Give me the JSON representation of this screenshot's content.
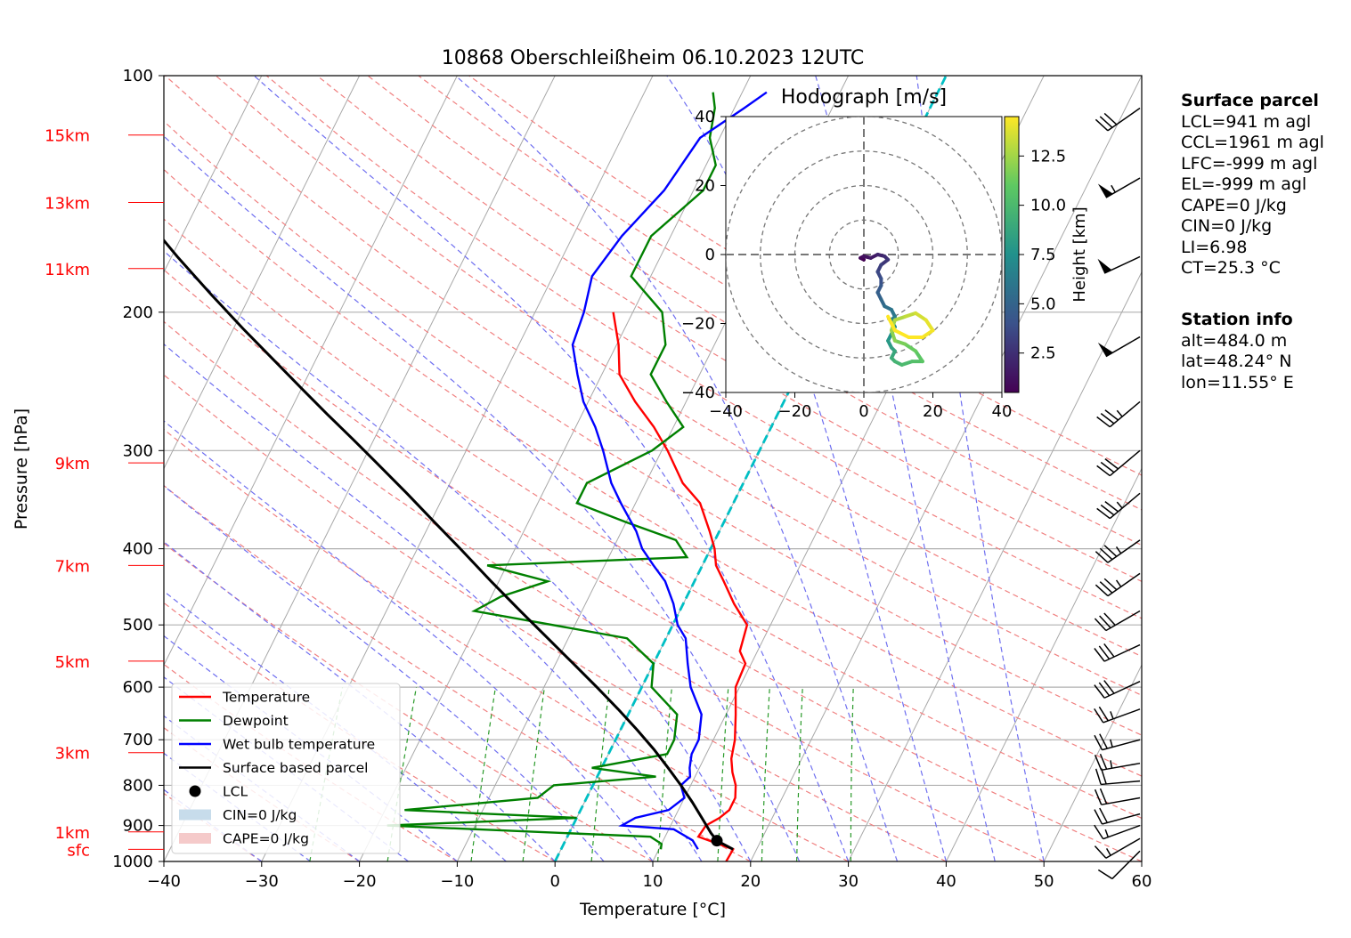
{
  "chart_data": {
    "type": "skew-t",
    "title": "10868 Oberschleißheim 06.10.2023 12UTC",
    "xlabel": "Temperature [°C]",
    "ylabel": "Pressure [hPa]",
    "xlim": [
      -40,
      60
    ],
    "ylim": [
      1000,
      100
    ],
    "x_ticks": [
      "−40",
      "−30",
      "−20",
      "−10",
      "0",
      "10",
      "20",
      "30",
      "40",
      "50",
      "60"
    ],
    "y_ticks": [
      {
        "p": 100,
        "label": "100"
      },
      {
        "p": 200,
        "label": "200"
      },
      {
        "p": 300,
        "label": "300"
      },
      {
        "p": 400,
        "label": "400"
      },
      {
        "p": 500,
        "label": "500"
      },
      {
        "p": 600,
        "label": "600"
      },
      {
        "p": 700,
        "label": "700"
      },
      {
        "p": 800,
        "label": "800"
      },
      {
        "p": 900,
        "label": "900"
      },
      {
        "p": 1000,
        "label": "1000"
      }
    ],
    "height_labels": [
      {
        "p": 119,
        "label": "15km"
      },
      {
        "p": 145,
        "label": "13km"
      },
      {
        "p": 176,
        "label": "11km"
      },
      {
        "p": 311,
        "label": "9km"
      },
      {
        "p": 420,
        "label": "7km"
      },
      {
        "p": 556,
        "label": "5km"
      },
      {
        "p": 727,
        "label": "3km"
      },
      {
        "p": 917,
        "label": "1km"
      },
      {
        "p": 965,
        "label": "sfc"
      }
    ],
    "legend": {
      "position": "lower-left",
      "items": [
        {
          "label": "Temperature",
          "color": "#ff0000",
          "kind": "line"
        },
        {
          "label": "Dewpoint",
          "color": "#008000",
          "kind": "line"
        },
        {
          "label": "Wet bulb temperature",
          "color": "#0000ff",
          "kind": "line"
        },
        {
          "label": "Surface based parcel",
          "color": "#000000",
          "kind": "line"
        },
        {
          "label": "LCL",
          "color": "#000000",
          "kind": "dot"
        },
        {
          "label": "CIN=0 J/kg",
          "color": "#c7dceb",
          "kind": "patch"
        },
        {
          "label": "CAPE=0 J/kg",
          "color": "#f5caca",
          "kind": "patch"
        }
      ]
    },
    "series": [
      {
        "name": "Temperature",
        "color": "#ff0000",
        "points": [
          [
            1000,
            17.5
          ],
          [
            965,
            17.6
          ],
          [
            950,
            15.8
          ],
          [
            930,
            13.4
          ],
          [
            900,
            13.6
          ],
          [
            880,
            14.6
          ],
          [
            860,
            15.2
          ],
          [
            830,
            15.2
          ],
          [
            800,
            14.6
          ],
          [
            770,
            13.6
          ],
          [
            740,
            12.8
          ],
          [
            700,
            12.2
          ],
          [
            650,
            11.0
          ],
          [
            600,
            9.6
          ],
          [
            560,
            9.4
          ],
          [
            540,
            8.2
          ],
          [
            500,
            7.6
          ],
          [
            470,
            5.2
          ],
          [
            440,
            3.0
          ],
          [
            420,
            1.4
          ],
          [
            400,
            0.4
          ],
          [
            380,
            -1.0
          ],
          [
            350,
            -3.4
          ],
          [
            330,
            -6.2
          ],
          [
            300,
            -9.4
          ],
          [
            280,
            -12.0
          ],
          [
            260,
            -15.2
          ],
          [
            240,
            -18.2
          ],
          [
            220,
            -19.8
          ],
          [
            200,
            -22.0
          ]
        ]
      },
      {
        "name": "Dewpoint",
        "color": "#008000",
        "points": [
          [
            965,
            10.2
          ],
          [
            950,
            10.0
          ],
          [
            930,
            8.5
          ],
          [
            900,
            -19.0
          ],
          [
            880,
            0.0
          ],
          [
            860,
            -18.0
          ],
          [
            830,
            -5.0
          ],
          [
            800,
            -4.0
          ],
          [
            780,
            6.0
          ],
          [
            760,
            -1.0
          ],
          [
            730,
            6.0
          ],
          [
            700,
            6.0
          ],
          [
            650,
            5.0
          ],
          [
            600,
            1.0
          ],
          [
            560,
            0.0
          ],
          [
            520,
            -4.0
          ],
          [
            480,
            -21.0
          ],
          [
            460,
            -19.0
          ],
          [
            440,
            -15.0
          ],
          [
            420,
            -22.0
          ],
          [
            410,
            -2.0
          ],
          [
            390,
            -4.0
          ],
          [
            370,
            -10.0
          ],
          [
            350,
            -16.0
          ],
          [
            330,
            -16.0
          ],
          [
            300,
            -11.0
          ],
          [
            280,
            -9.0
          ],
          [
            260,
            -12.0
          ],
          [
            240,
            -15.0
          ],
          [
            220,
            -15.0
          ],
          [
            200,
            -17.0
          ],
          [
            180,
            -22.0
          ],
          [
            160,
            -22.0
          ],
          [
            140,
            -19.0
          ],
          [
            130,
            -19.0
          ],
          [
            120,
            -21.0
          ],
          [
            110,
            -22.0
          ],
          [
            105,
            -23.0
          ]
        ]
      },
      {
        "name": "Wet bulb temperature",
        "color": "#0000ff",
        "points": [
          [
            965,
            14.0
          ],
          [
            940,
            13.0
          ],
          [
            910,
            10.5
          ],
          [
            900,
            5.0
          ],
          [
            880,
            6.0
          ],
          [
            860,
            9.0
          ],
          [
            830,
            10.0
          ],
          [
            800,
            9.0
          ],
          [
            780,
            9.5
          ],
          [
            760,
            9.0
          ],
          [
            730,
            8.5
          ],
          [
            700,
            8.5
          ],
          [
            650,
            7.5
          ],
          [
            600,
            5.0
          ],
          [
            560,
            3.5
          ],
          [
            520,
            2.0
          ],
          [
            500,
            0.5
          ],
          [
            470,
            -1.0
          ],
          [
            440,
            -3.0
          ],
          [
            420,
            -5.0
          ],
          [
            400,
            -7.0
          ],
          [
            380,
            -8.5
          ],
          [
            350,
            -11.5
          ],
          [
            330,
            -13.5
          ],
          [
            300,
            -16.0
          ],
          [
            280,
            -18.0
          ],
          [
            260,
            -20.5
          ],
          [
            240,
            -22.5
          ],
          [
            220,
            -24.5
          ],
          [
            200,
            -25.0
          ],
          [
            180,
            -26.0
          ],
          [
            160,
            -25.0
          ],
          [
            140,
            -23.0
          ],
          [
            120,
            -22.0
          ],
          [
            110,
            -19.0
          ],
          [
            105,
            -17.5
          ]
        ]
      },
      {
        "name": "Surface based parcel",
        "color": "#000000",
        "points": [
          [
            965,
            17.6
          ],
          [
            941,
            15.5
          ],
          [
            920,
            14.5
          ],
          [
            880,
            12.8
          ],
          [
            840,
            11.0
          ],
          [
            800,
            9.0
          ],
          [
            760,
            6.8
          ],
          [
            720,
            4.4
          ],
          [
            680,
            1.7
          ],
          [
            640,
            -1.3
          ],
          [
            600,
            -4.6
          ],
          [
            560,
            -8.2
          ],
          [
            520,
            -12.1
          ],
          [
            480,
            -16.3
          ],
          [
            440,
            -20.8
          ],
          [
            400,
            -25.6
          ],
          [
            370,
            -29.6
          ],
          [
            340,
            -33.9
          ],
          [
            310,
            -38.7
          ],
          [
            290,
            -42.2
          ],
          [
            270,
            -46.0
          ],
          [
            250,
            -50.0
          ],
          [
            230,
            -54.3
          ],
          [
            210,
            -59.0
          ],
          [
            190,
            -64.0
          ],
          [
            170,
            -69.4
          ],
          [
            150,
            -75.2
          ],
          [
            130,
            -81.5
          ],
          [
            118,
            -85.5
          ]
        ]
      }
    ],
    "lcl": {
      "p": 941,
      "t": 15.5
    },
    "freezing_level": {
      "label": "0 °C isotherm"
    },
    "wind_barbs": [
      {
        "p": 970,
        "speed_kt": 10,
        "dir": 225
      },
      {
        "p": 935,
        "speed_kt": 15,
        "dir": 240
      },
      {
        "p": 900,
        "speed_kt": 15,
        "dir": 250
      },
      {
        "p": 870,
        "speed_kt": 20,
        "dir": 255
      },
      {
        "p": 830,
        "speed_kt": 20,
        "dir": 260
      },
      {
        "p": 790,
        "speed_kt": 20,
        "dir": 265
      },
      {
        "p": 750,
        "speed_kt": 25,
        "dir": 260
      },
      {
        "p": 700,
        "speed_kt": 25,
        "dir": 255
      },
      {
        "p": 640,
        "speed_kt": 25,
        "dir": 250
      },
      {
        "p": 590,
        "speed_kt": 30,
        "dir": 245
      },
      {
        "p": 530,
        "speed_kt": 30,
        "dir": 245
      },
      {
        "p": 480,
        "speed_kt": 30,
        "dir": 240
      },
      {
        "p": 430,
        "speed_kt": 35,
        "dir": 235
      },
      {
        "p": 390,
        "speed_kt": 35,
        "dir": 235
      },
      {
        "p": 340,
        "speed_kt": 35,
        "dir": 230
      },
      {
        "p": 300,
        "speed_kt": 30,
        "dir": 230
      },
      {
        "p": 260,
        "speed_kt": 35,
        "dir": 230
      },
      {
        "p": 215,
        "speed_kt": 50,
        "dir": 240
      },
      {
        "p": 170,
        "speed_kt": 50,
        "dir": 245
      },
      {
        "p": 135,
        "speed_kt": 55,
        "dir": 240
      },
      {
        "p": 110,
        "speed_kt": 30,
        "dir": 235
      }
    ]
  },
  "hodograph": {
    "title": "Hodograph [m/s]",
    "xlim": [
      -40,
      40
    ],
    "ylim": [
      -40,
      40
    ],
    "ticks": [
      "−40",
      "−20",
      "0",
      "20",
      "40"
    ],
    "yticks": [
      "40",
      "20",
      "0",
      "−20",
      "−40"
    ],
    "colorbar_label": "Height [km]",
    "colorbar_ticks": [
      "2.5",
      "5.0",
      "7.5",
      "10.0",
      "12.5"
    ],
    "colorbar_range": [
      0.5,
      14.5
    ],
    "trace": [
      [
        0,
        -1.5,
        0.5
      ],
      [
        -1,
        -1,
        0.8
      ],
      [
        0,
        -0.5,
        1.2
      ],
      [
        2,
        -1,
        1.6
      ],
      [
        4,
        0,
        2.0
      ],
      [
        6,
        -0.5,
        2.4
      ],
      [
        7,
        -1.5,
        2.8
      ],
      [
        5,
        -3,
        3.2
      ],
      [
        4,
        -5,
        3.6
      ],
      [
        5,
        -7,
        4.0
      ],
      [
        5,
        -9,
        4.4
      ],
      [
        4,
        -11,
        4.8
      ],
      [
        5,
        -13,
        5.2
      ],
      [
        6,
        -15,
        5.6
      ],
      [
        8,
        -16,
        6.0
      ],
      [
        9,
        -18,
        6.4
      ],
      [
        8,
        -19,
        6.8
      ],
      [
        9,
        -21,
        7.2
      ],
      [
        8,
        -23,
        7.6
      ],
      [
        7,
        -25,
        8.0
      ],
      [
        8,
        -27,
        8.4
      ],
      [
        9,
        -28,
        8.8
      ],
      [
        8,
        -30,
        9.2
      ],
      [
        9,
        -31,
        9.6
      ],
      [
        11,
        -32,
        10.0
      ],
      [
        14,
        -31,
        10.4
      ],
      [
        17,
        -31,
        10.8
      ],
      [
        15,
        -28,
        11.2
      ],
      [
        12,
        -26,
        11.6
      ],
      [
        9,
        -25,
        12.0
      ],
      [
        8,
        -22,
        12.4
      ],
      [
        9,
        -19,
        12.8
      ],
      [
        12,
        -18,
        13.2
      ],
      [
        15,
        -17,
        13.6
      ],
      [
        18,
        -19,
        14.0
      ],
      [
        20,
        -22,
        14.3
      ],
      [
        17,
        -24,
        14.5
      ],
      [
        13,
        -24,
        14.5
      ],
      [
        9,
        -22,
        14.5
      ],
      [
        7,
        -18,
        14.5
      ]
    ]
  },
  "surface_parcel": {
    "title": "Surface parcel",
    "lines": [
      "LCL=941 m agl",
      "CCL=1961 m agl",
      "LFC=-999 m agl",
      "EL=-999 m agl",
      "CAPE=0 J/kg",
      "CIN=0 J/kg",
      "LI=6.98",
      "CT=25.3 °C"
    ]
  },
  "station_info": {
    "title": "Station info",
    "lines": [
      "alt=484.0 m",
      "lat=48.24° N",
      "lon=11.55° E"
    ]
  }
}
